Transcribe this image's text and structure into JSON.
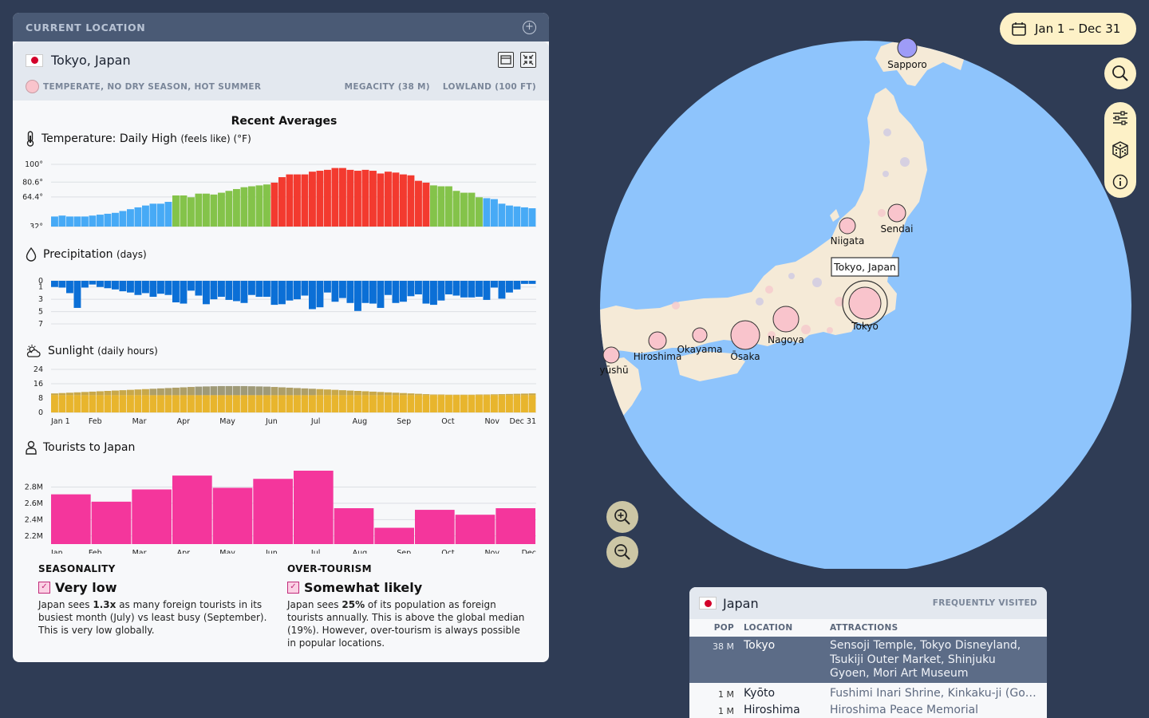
{
  "panel": {
    "title": "CURRENT LOCATION"
  },
  "location": {
    "name": "Tokyo, Japan",
    "climate": "TEMPERATE, NO DRY SEASON, HOT SUMMER",
    "size": "MEGACITY (38 M)",
    "elevation": "LOWLAND (100 FT)"
  },
  "charts_title": "Recent Averages",
  "temperature": {
    "title": "Temperature: Daily High",
    "subtitle": "(feels like) (°F)",
    "y_labels": [
      "100°",
      "80.6°",
      "64.4°",
      "32°"
    ],
    "month_labels": [
      "Jan 1",
      "Feb",
      "Mar",
      "Apr",
      "May",
      "Jun",
      "Jul",
      "Aug",
      "Sep",
      "Oct",
      "Nov",
      "Dec 31"
    ]
  },
  "precipitation": {
    "title": "Precipitation",
    "subtitle": "(days)",
    "y_labels": [
      "0",
      "1",
      "3",
      "5",
      "7"
    ],
    "month_labels": [
      "Jan 1",
      "Feb",
      "Mar",
      "Apr",
      "May",
      "Jun",
      "Jul",
      "Aug",
      "Sep",
      "Oct",
      "Nov",
      "Dec 31"
    ]
  },
  "sunlight": {
    "title": "Sunlight",
    "subtitle": "(daily hours)",
    "y_labels": [
      "24",
      "16",
      "8",
      "0"
    ],
    "month_labels": [
      "Jan 1",
      "Feb",
      "Mar",
      "Apr",
      "May",
      "Jun",
      "Jul",
      "Aug",
      "Sep",
      "Oct",
      "Nov",
      "Dec 31"
    ]
  },
  "tourists": {
    "title": "Tourists to Japan",
    "y_labels": [
      "2.8M",
      "2.6M",
      "2.4M",
      "2.2M"
    ],
    "month_labels": [
      "Jan",
      "Feb",
      "Mar",
      "Apr",
      "May",
      "Jun",
      "Jul",
      "Aug",
      "Sep",
      "Oct",
      "Nov",
      "Dec"
    ]
  },
  "chart_data": [
    {
      "type": "bar",
      "title": "Temperature: Daily High",
      "ylabel": "°F",
      "ylim": [
        32,
        100
      ],
      "values": [
        43,
        44,
        43,
        43,
        43,
        44,
        45,
        46,
        47,
        49,
        51,
        53,
        55,
        57,
        57,
        59,
        66,
        66,
        64,
        68,
        68,
        67,
        69,
        71,
        73,
        75,
        76,
        77,
        78,
        80,
        86,
        89,
        89,
        89,
        92,
        93,
        94,
        96,
        96,
        94,
        93,
        94,
        93,
        90,
        92,
        91,
        89,
        88,
        82,
        80,
        77,
        76,
        76,
        71,
        69,
        69,
        64,
        63,
        62,
        57,
        55,
        54,
        53,
        52
      ],
      "colors": {
        "cold": "#47aaf6",
        "mild": "#84c34a",
        "hot": "#f33a2f"
      }
    },
    {
      "type": "bar",
      "title": "Precipitation",
      "ylabel": "days",
      "ylim": [
        0,
        7
      ],
      "values": [
        1.0,
        1.1,
        2.0,
        4.4,
        1.1,
        0.6,
        1.0,
        1.2,
        1.4,
        1.7,
        1.9,
        2.3,
        2.0,
        2.6,
        2.1,
        2.3,
        3.5,
        3.7,
        1.6,
        2.4,
        3.8,
        3.0,
        2.6,
        3.1,
        3.3,
        3.6,
        2.3,
        2.6,
        2.6,
        3.9,
        3.8,
        3.2,
        3.0,
        2.4,
        4.6,
        4.3,
        1.9,
        3.4,
        2.8,
        3.6,
        4.9,
        3.6,
        3.7,
        4.4,
        2.3,
        3.6,
        3.4,
        2.5,
        2.2,
        3.7,
        3.9,
        3.2,
        2.2,
        2.4,
        2.7,
        2.7,
        2.6,
        3.1,
        1.1,
        2.9,
        1.9,
        1.4,
        0.5,
        0.5
      ]
    },
    {
      "type": "bar",
      "title": "Sunlight",
      "ylabel": "daily hours",
      "ylim": [
        0,
        24
      ],
      "values": [
        10.6,
        10.8,
        11.0,
        11.2,
        11.4,
        11.6,
        11.8,
        12.0,
        12.2,
        12.4,
        12.6,
        12.8,
        13.0,
        13.2,
        13.4,
        13.6,
        13.8,
        14.0,
        14.2,
        14.4,
        14.5,
        14.6,
        14.7,
        14.7,
        14.7,
        14.7,
        14.6,
        14.5,
        14.4,
        14.2,
        14.0,
        13.8,
        13.6,
        13.4,
        13.2,
        13.0,
        12.8,
        12.6,
        12.4,
        12.2,
        12.0,
        11.8,
        11.6,
        11.4,
        11.2,
        11.0,
        10.8,
        10.6,
        10.4,
        10.2,
        10.0,
        10.0,
        9.9,
        9.9,
        9.9,
        9.9,
        10.0,
        10.0,
        10.1,
        10.2,
        10.3,
        10.4,
        10.5,
        10.6
      ]
    },
    {
      "type": "bar",
      "title": "Tourists to Japan",
      "categories": [
        "Jan",
        "Feb",
        "Mar",
        "Apr",
        "May",
        "Jun",
        "Jul",
        "Aug",
        "Sep",
        "Oct",
        "Nov",
        "Dec"
      ],
      "values": [
        2.71,
        2.62,
        2.77,
        2.94,
        2.79,
        2.9,
        3.0,
        2.54,
        2.3,
        2.52,
        2.46,
        2.54
      ],
      "ylim": [
        2.1,
        3.0
      ],
      "color": "#f4369c"
    }
  ],
  "seasonality": {
    "head": "SEASONALITY",
    "level": "Very low",
    "text_a": "Japan sees ",
    "text_b": "1.3x",
    "text_c": " as many foreign tourists in its busiest month (July) vs least busy (September). This is very low globally."
  },
  "overtourism": {
    "head": "OVER-TOURISM",
    "level": "Somewhat likely",
    "text_a": "Japan sees ",
    "text_b": "25%",
    "text_c": " of its population as foreign tourists annually. This is above the global median (19%). However, over-tourism is always possible in popular locations."
  },
  "date_range": "Jan 1 – Dec 31",
  "map": {
    "tooltip": "Tokyo, Japan",
    "cities": [
      {
        "name": "Sapporo",
        "color": "#9e9cf7"
      },
      {
        "name": "Sendai",
        "color": "#f9c4cc"
      },
      {
        "name": "Niigata",
        "color": "#f9c4cc"
      },
      {
        "name": "Tokyo",
        "color": "#f9c4cc"
      },
      {
        "name": "Nagoya",
        "color": "#f9c4cc"
      },
      {
        "name": "Ōsaka",
        "color": "#f9c4cc"
      },
      {
        "name": "Okayama",
        "color": "#f9c4cc"
      },
      {
        "name": "Hiroshima",
        "color": "#f9c4cc"
      },
      {
        "name": "Kyūshū",
        "color": "#f9c4cc"
      }
    ],
    "colors": {
      "ocean": "#8ec4fc",
      "land": "#f5ead7"
    }
  },
  "country": {
    "name": "Japan",
    "tag": "FREQUENTLY VISITED",
    "headers": {
      "pop": "POP",
      "location": "LOCATION",
      "attractions": "ATTRACTIONS"
    },
    "rows": [
      {
        "pop": "38 M",
        "location": "Tokyo",
        "attractions": "Sensoji Temple, Tokyo Disneyland, Tsukiji Outer Market, Shinjuku Gyoen, Mori Art Museum"
      },
      {
        "pop": "1 M",
        "location": "Kyōto",
        "attractions": "Fushimi Inari Shrine, Kinkaku-ji (Golden Pavilion)"
      },
      {
        "pop": "1 M",
        "location": "Hiroshima",
        "attractions": "Hiroshima Peace Memorial"
      }
    ]
  },
  "icons": [
    "plus-circle-icon",
    "window-icon",
    "collapse-icon",
    "thermometer-icon",
    "droplet-icon",
    "sun-cloud-icon",
    "person-icon",
    "calendar-icon",
    "search-icon",
    "sliders-icon",
    "dice-icon",
    "info-icon",
    "zoom-in-icon",
    "zoom-out-icon",
    "check-icon"
  ]
}
